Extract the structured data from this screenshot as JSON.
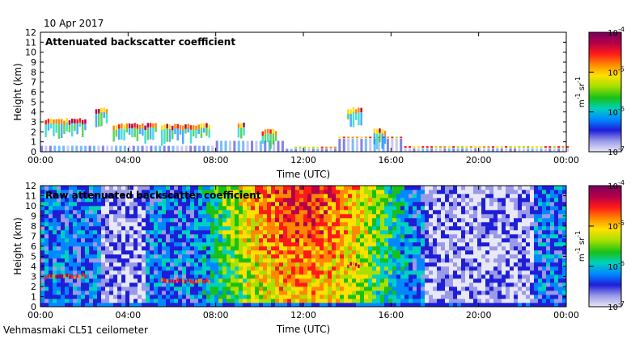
{
  "date": "10 Apr 2017",
  "instrument": "Vehmasmaki CL51 ceilometer",
  "colors": {
    "scale": [
      "#e8e8f8",
      "#9a9ae8",
      "#1e1ed8",
      "#0088ff",
      "#00d0c0",
      "#18c018",
      "#a8e000",
      "#ffe000",
      "#ff8800",
      "#ff1a1a",
      "#b40048",
      "#780060"
    ],
    "background": "#ffffff",
    "frame": "#000000"
  },
  "chart_data": [
    {
      "type": "heatmap",
      "title": "Attenuated backscatter coefficient",
      "xlabel": "Time (UTC)",
      "ylabel": "Height (km)",
      "x_ticks": [
        "00:00",
        "04:00",
        "08:00",
        "12:00",
        "16:00",
        "20:00",
        "00:00"
      ],
      "y_ticks": [
        "0",
        "1",
        "2",
        "3",
        "4",
        "5",
        "6",
        "7",
        "8",
        "9",
        "10",
        "11",
        "12"
      ],
      "xlim_hours": [
        0,
        24
      ],
      "ylim_km": [
        0,
        12
      ],
      "colorbar": {
        "ticks": [
          "10",
          "10",
          "10",
          "10"
        ],
        "exponents": [
          "-4",
          "-5",
          "-6",
          "-7"
        ],
        "unit": "m",
        "unit_exp1": "-1",
        "unit_sr": "sr",
        "unit_exp2": "-1",
        "range_log10": [
          -7,
          -4
        ]
      },
      "features": [
        {
          "name": "boundary layer",
          "t_start": 0,
          "t_end": 24,
          "height_km": 0.3
        },
        {
          "name": "cloud layer",
          "t_start": 0.2,
          "t_end": 2.1,
          "height_km": 3.0
        },
        {
          "name": "cloud layer",
          "t_start": 2.5,
          "t_end": 3.1,
          "height_km": 4.1
        },
        {
          "name": "cloud layer",
          "t_start": 3.3,
          "t_end": 5.3,
          "height_km": 2.5
        },
        {
          "name": "cloud layer",
          "t_start": 5.5,
          "t_end": 7.7,
          "height_km": 2.5
        },
        {
          "name": "cloud layer",
          "t_start": 9.0,
          "t_end": 9.3,
          "height_km": 2.6
        },
        {
          "name": "cloud layer",
          "t_start": 10.1,
          "t_end": 10.7,
          "height_km": 1.9
        },
        {
          "name": "cloud layer",
          "t_start": 14.0,
          "t_end": 14.6,
          "height_km": 4.1
        },
        {
          "name": "cloud layer",
          "t_start": 15.2,
          "t_end": 15.7,
          "height_km": 2.0
        }
      ]
    },
    {
      "type": "heatmap",
      "title": "Raw attenuated backscatter coefficient",
      "xlabel": "Time (UTC)",
      "ylabel": "Height (km)",
      "x_ticks": [
        "00:00",
        "04:00",
        "08:00",
        "12:00",
        "16:00",
        "20:00",
        "00:00"
      ],
      "y_ticks": [
        "0",
        "1",
        "2",
        "3",
        "4",
        "5",
        "6",
        "7",
        "8",
        "9",
        "10",
        "11",
        "12"
      ],
      "xlim_hours": [
        0,
        24
      ],
      "ylim_km": [
        0,
        12
      ],
      "colorbar": {
        "ticks": [
          "10",
          "10",
          "10",
          "10"
        ],
        "exponents": [
          "-4",
          "-5",
          "-6",
          "-7"
        ],
        "unit": "m",
        "unit_exp1": "-1",
        "unit_sr": "sr",
        "unit_exp2": "-1",
        "range_log10": [
          -7,
          -4
        ]
      },
      "features": [
        {
          "name": "noise",
          "t_start": 0,
          "t_end": 24,
          "height_km": 12
        },
        {
          "name": "cloud layer",
          "t_start": 0.2,
          "t_end": 2.1,
          "height_km": 3.0
        },
        {
          "name": "cloud layer",
          "t_start": 5.5,
          "t_end": 7.7,
          "height_km": 2.5
        },
        {
          "name": "cloud layer",
          "t_start": 14.0,
          "t_end": 14.6,
          "height_km": 4.1
        }
      ]
    }
  ]
}
